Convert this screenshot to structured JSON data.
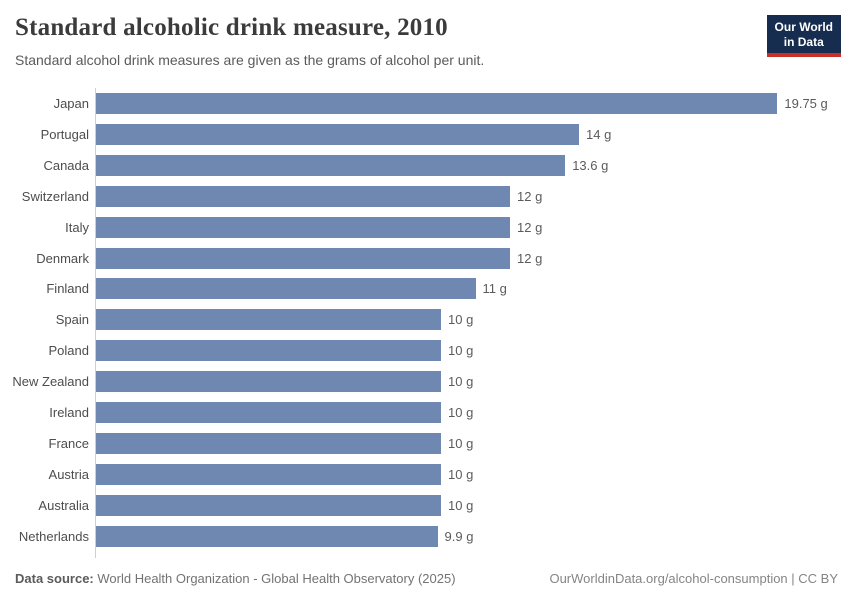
{
  "header": {
    "title": "Standard alcoholic drink measure, 2010",
    "subtitle": "Standard alcohol drink measures are given as the grams of alcohol per unit.",
    "logo": {
      "line1": "Our World",
      "line2": "in Data"
    }
  },
  "chart_data": {
    "type": "bar",
    "orientation": "horizontal",
    "title": "Standard alcoholic drink measure, 2010",
    "subtitle": "Standard alcohol drink measures are given as the grams of alcohol per unit.",
    "unit": "grams of alcohol per unit",
    "grid": false,
    "xlim": [
      0,
      21.8
    ],
    "bar_color": "#6f88b2",
    "categories": [
      "Japan",
      "Portugal",
      "Canada",
      "Switzerland",
      "Italy",
      "Denmark",
      "Finland",
      "Spain",
      "Poland",
      "New Zealand",
      "Ireland",
      "France",
      "Austria",
      "Australia",
      "Netherlands"
    ],
    "values": [
      19.75,
      14,
      13.6,
      12,
      12,
      12,
      11,
      10,
      10,
      10,
      10,
      10,
      10,
      10,
      9.9
    ],
    "value_labels": [
      "19.75 g",
      "14 g",
      "13.6 g",
      "12 g",
      "12 g",
      "12 g",
      "11 g",
      "10 g",
      "10 g",
      "10 g",
      "10 g",
      "10 g",
      "10 g",
      "10 g",
      "9.9 g"
    ]
  },
  "footer": {
    "datasource_label": "Data source:",
    "datasource_text": "World Health Organization - Global Health Observatory (2025)",
    "link_text": "OurWorldinData.org/alcohol-consumption | CC BY"
  },
  "colors": {
    "bar": "#6f88b2",
    "axis_line": "#cfcfcf",
    "title_text": "#3b3b3b",
    "body_text": "#5b5b5b",
    "logo_navy": "#162d50",
    "logo_red": "#c72f28"
  }
}
